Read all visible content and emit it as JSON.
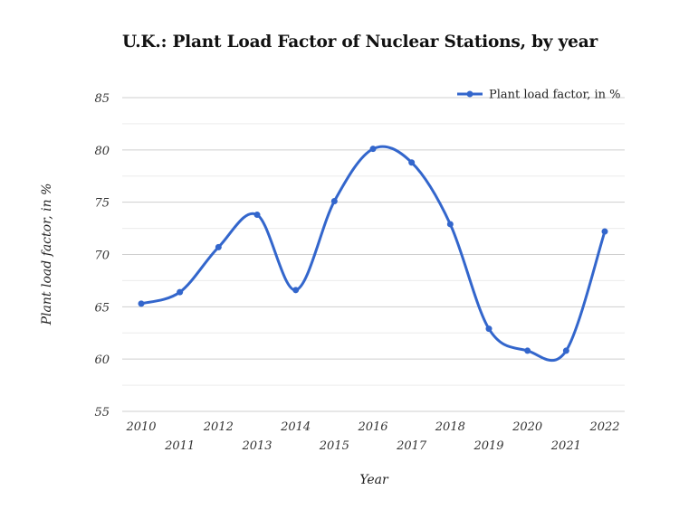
{
  "chart_data": {
    "type": "line",
    "title": "U.K.: Plant Load Factor of Nuclear Stations, by year",
    "xlabel": "Year",
    "ylabel": "Plant load factor, in %",
    "categories": [
      "2010",
      "2011",
      "2012",
      "2013",
      "2014",
      "2015",
      "2016",
      "2017",
      "2018",
      "2019",
      "2020",
      "2021",
      "2022"
    ],
    "series": [
      {
        "name": "Plant load factor, in %",
        "values": [
          65.3,
          66.4,
          70.7,
          73.8,
          66.6,
          75.1,
          80.1,
          78.8,
          72.9,
          62.9,
          60.8,
          60.8,
          72.2
        ],
        "color": "#3366cc"
      }
    ],
    "ylim": [
      55,
      85
    ],
    "yticks": [
      55,
      60,
      65,
      70,
      75,
      80,
      85
    ],
    "grid": true,
    "smooth": true,
    "legend": "top-right"
  }
}
